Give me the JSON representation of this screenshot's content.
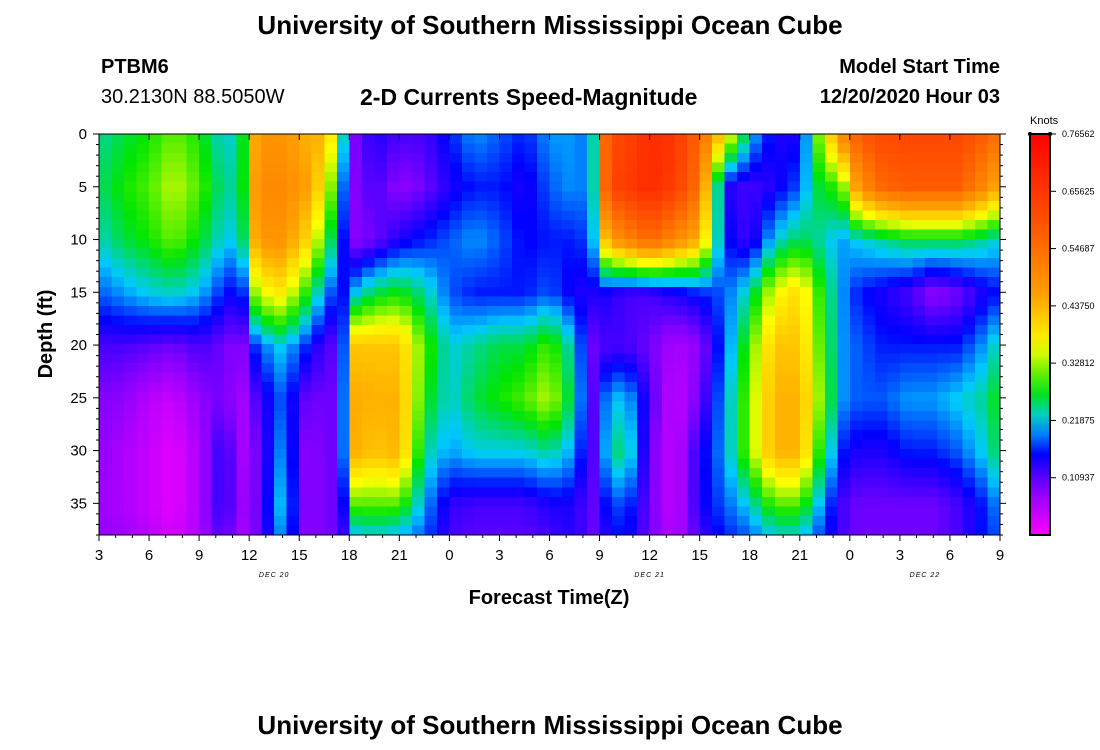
{
  "header": {
    "title": "University of Southern Mississippi Ocean Cube",
    "station_id": "PTBM6",
    "station_coords": "30.2130N 88.5050W",
    "subtitle": "2-D Currents Speed-Magnitude",
    "model_start_label": "Model Start Time",
    "model_start_value": "12/20/2020 Hour 03"
  },
  "footer": {
    "title": "University of Southern Mississippi Ocean Cube"
  },
  "chart_data": {
    "type": "heatmap",
    "title": "2-D Currents Speed-Magnitude",
    "xlabel": "Forecast Time(Z)",
    "ylabel": "Depth (ft)",
    "y_reversed": true,
    "xlim": [
      0,
      54
    ],
    "ylim": [
      0,
      38
    ],
    "x_ticks": [
      {
        "t": 0,
        "label": "3"
      },
      {
        "t": 3,
        "label": "6"
      },
      {
        "t": 6,
        "label": "9"
      },
      {
        "t": 9,
        "label": "12"
      },
      {
        "t": 12,
        "label": "15"
      },
      {
        "t": 15,
        "label": "18"
      },
      {
        "t": 18,
        "label": "21"
      },
      {
        "t": 21,
        "label": "0"
      },
      {
        "t": 24,
        "label": "3"
      },
      {
        "t": 27,
        "label": "6"
      },
      {
        "t": 30,
        "label": "9"
      },
      {
        "t": 33,
        "label": "12"
      },
      {
        "t": 36,
        "label": "15"
      },
      {
        "t": 39,
        "label": "18"
      },
      {
        "t": 42,
        "label": "21"
      },
      {
        "t": 45,
        "label": "0"
      },
      {
        "t": 48,
        "label": "3"
      },
      {
        "t": 51,
        "label": "6"
      },
      {
        "t": 54,
        "label": "9"
      }
    ],
    "day_labels": [
      {
        "t": 10.5,
        "label": "DEC 20"
      },
      {
        "t": 33,
        "label": "DEC 21"
      },
      {
        "t": 49.5,
        "label": "DEC 22"
      }
    ],
    "y_ticks": [
      0,
      5,
      10,
      15,
      20,
      25,
      30,
      35
    ],
    "colorbar": {
      "title": "Knots",
      "min": 0.0,
      "max": 0.765625,
      "tick_values": [
        0.109375,
        0.21875,
        0.328125,
        0.4375,
        0.546875,
        0.65625,
        0.765625
      ],
      "tick_labels": [
        "0.10937",
        "0.21875",
        "0.32812",
        "0.43750",
        "0.54687",
        "0.65625",
        "0.76562"
      ]
    },
    "grid_columns": [
      {
        "t": 0.0,
        "v": [
          0.24,
          0.25,
          0.23,
          0.18,
          0.12,
          0.09,
          0.08,
          0.07,
          0.08
        ]
      },
      {
        "t": 1.5,
        "v": [
          0.26,
          0.28,
          0.26,
          0.2,
          0.12,
          0.08,
          0.06,
          0.06,
          0.07
        ]
      },
      {
        "t": 3.0,
        "v": [
          0.28,
          0.3,
          0.28,
          0.22,
          0.11,
          0.05,
          0.04,
          0.04,
          0.05
        ]
      },
      {
        "t": 4.5,
        "v": [
          0.31,
          0.34,
          0.31,
          0.23,
          0.1,
          0.04,
          0.02,
          0.02,
          0.03
        ]
      },
      {
        "t": 6.0,
        "v": [
          0.28,
          0.3,
          0.27,
          0.21,
          0.12,
          0.08,
          0.06,
          0.06,
          0.06
        ]
      },
      {
        "t": 7.5,
        "v": [
          0.22,
          0.24,
          0.22,
          0.16,
          0.1,
          0.1,
          0.14,
          0.14,
          0.12
        ]
      },
      {
        "t": 8.5,
        "v": [
          0.24,
          0.24,
          0.22,
          0.14,
          0.08,
          0.06,
          0.06,
          0.07,
          0.06
        ]
      },
      {
        "t": 9.5,
        "v": [
          0.48,
          0.5,
          0.48,
          0.35,
          0.18,
          0.12,
          0.1,
          0.1,
          0.1
        ]
      },
      {
        "t": 11.0,
        "v": [
          0.48,
          0.5,
          0.48,
          0.38,
          0.22,
          0.18,
          0.2,
          0.22,
          0.2
        ]
      },
      {
        "t": 12.5,
        "v": [
          0.44,
          0.46,
          0.4,
          0.28,
          0.16,
          0.1,
          0.08,
          0.08,
          0.08
        ]
      },
      {
        "t": 13.5,
        "v": [
          0.44,
          0.38,
          0.3,
          0.2,
          0.12,
          0.1,
          0.1,
          0.1,
          0.1
        ]
      },
      {
        "t": 14.5,
        "v": [
          0.28,
          0.22,
          0.18,
          0.14,
          0.1,
          0.1,
          0.1,
          0.1,
          0.1
        ]
      },
      {
        "t": 15.0,
        "v": [
          0.08,
          0.08,
          0.08,
          0.2,
          0.42,
          0.45,
          0.45,
          0.3,
          0.2
        ]
      },
      {
        "t": 16.5,
        "v": [
          0.14,
          0.12,
          0.1,
          0.26,
          0.42,
          0.44,
          0.42,
          0.3,
          0.22
        ]
      },
      {
        "t": 18.0,
        "v": [
          0.12,
          0.08,
          0.14,
          0.28,
          0.42,
          0.44,
          0.44,
          0.3,
          0.2
        ]
      },
      {
        "t": 19.5,
        "v": [
          0.12,
          0.1,
          0.16,
          0.24,
          0.3,
          0.28,
          0.24,
          0.2,
          0.18
        ]
      },
      {
        "t": 21.0,
        "v": [
          0.16,
          0.14,
          0.18,
          0.18,
          0.22,
          0.22,
          0.2,
          0.13,
          0.12
        ]
      },
      {
        "t": 22.5,
        "v": [
          0.2,
          0.16,
          0.2,
          0.16,
          0.24,
          0.26,
          0.22,
          0.12,
          0.11
        ]
      },
      {
        "t": 24.0,
        "v": [
          0.18,
          0.16,
          0.18,
          0.16,
          0.26,
          0.28,
          0.22,
          0.12,
          0.11
        ]
      },
      {
        "t": 25.5,
        "v": [
          0.16,
          0.14,
          0.15,
          0.16,
          0.26,
          0.3,
          0.22,
          0.12,
          0.11
        ]
      },
      {
        "t": 27.0,
        "v": [
          0.2,
          0.18,
          0.16,
          0.18,
          0.3,
          0.34,
          0.24,
          0.14,
          0.12
        ]
      },
      {
        "t": 28.5,
        "v": [
          0.2,
          0.2,
          0.16,
          0.14,
          0.22,
          0.24,
          0.2,
          0.14,
          0.14
        ]
      },
      {
        "t": 29.5,
        "v": [
          0.18,
          0.18,
          0.18,
          0.14,
          0.1,
          0.1,
          0.1,
          0.1,
          0.1
        ]
      },
      {
        "t": 30.5,
        "v": [
          0.62,
          0.62,
          0.46,
          0.14,
          0.12,
          0.2,
          0.22,
          0.16,
          0.14
        ]
      },
      {
        "t": 31.5,
        "v": [
          0.62,
          0.64,
          0.5,
          0.12,
          0.12,
          0.22,
          0.26,
          0.18,
          0.16
        ]
      },
      {
        "t": 33.0,
        "v": [
          0.68,
          0.68,
          0.56,
          0.12,
          0.1,
          0.12,
          0.1,
          0.1,
          0.1
        ]
      },
      {
        "t": 34.5,
        "v": [
          0.66,
          0.64,
          0.5,
          0.14,
          0.06,
          0.04,
          0.04,
          0.04,
          0.05
        ]
      },
      {
        "t": 36.0,
        "v": [
          0.56,
          0.54,
          0.44,
          0.16,
          0.08,
          0.1,
          0.14,
          0.14,
          0.12
        ]
      },
      {
        "t": 37.5,
        "v": [
          0.4,
          0.14,
          0.16,
          0.18,
          0.18,
          0.2,
          0.2,
          0.18,
          0.16
        ]
      },
      {
        "t": 39.0,
        "v": [
          0.22,
          0.12,
          0.12,
          0.24,
          0.3,
          0.32,
          0.32,
          0.22,
          0.18
        ]
      },
      {
        "t": 40.5,
        "v": [
          0.14,
          0.14,
          0.22,
          0.36,
          0.42,
          0.44,
          0.44,
          0.3,
          0.22
        ]
      },
      {
        "t": 42.0,
        "v": [
          0.14,
          0.18,
          0.26,
          0.4,
          0.42,
          0.44,
          0.44,
          0.3,
          0.22
        ]
      },
      {
        "t": 43.0,
        "v": [
          0.3,
          0.26,
          0.24,
          0.3,
          0.32,
          0.34,
          0.3,
          0.22,
          0.18
        ]
      },
      {
        "t": 44.5,
        "v": [
          0.5,
          0.3,
          0.2,
          0.2,
          0.2,
          0.2,
          0.16,
          0.12,
          0.12
        ]
      },
      {
        "t": 45.5,
        "v": [
          0.58,
          0.48,
          0.22,
          0.16,
          0.18,
          0.18,
          0.14,
          0.1,
          0.1
        ]
      },
      {
        "t": 47.0,
        "v": [
          0.62,
          0.56,
          0.24,
          0.14,
          0.16,
          0.18,
          0.14,
          0.1,
          0.1
        ]
      },
      {
        "t": 48.5,
        "v": [
          0.62,
          0.58,
          0.26,
          0.12,
          0.16,
          0.2,
          0.16,
          0.1,
          0.1
        ]
      },
      {
        "t": 50.0,
        "v": [
          0.62,
          0.58,
          0.26,
          0.08,
          0.16,
          0.2,
          0.16,
          0.1,
          0.1
        ]
      },
      {
        "t": 51.5,
        "v": [
          0.62,
          0.58,
          0.26,
          0.1,
          0.16,
          0.22,
          0.18,
          0.12,
          0.12
        ]
      },
      {
        "t": 53.0,
        "v": [
          0.58,
          0.5,
          0.24,
          0.14,
          0.2,
          0.24,
          0.22,
          0.16,
          0.16
        ]
      },
      {
        "t": 54.0,
        "v": [
          0.54,
          0.44,
          0.22,
          0.16,
          0.24,
          0.28,
          0.26,
          0.2,
          0.18
        ]
      }
    ],
    "grid_depths": [
      0,
      5,
      10,
      15,
      20,
      25,
      30,
      35,
      38
    ]
  }
}
